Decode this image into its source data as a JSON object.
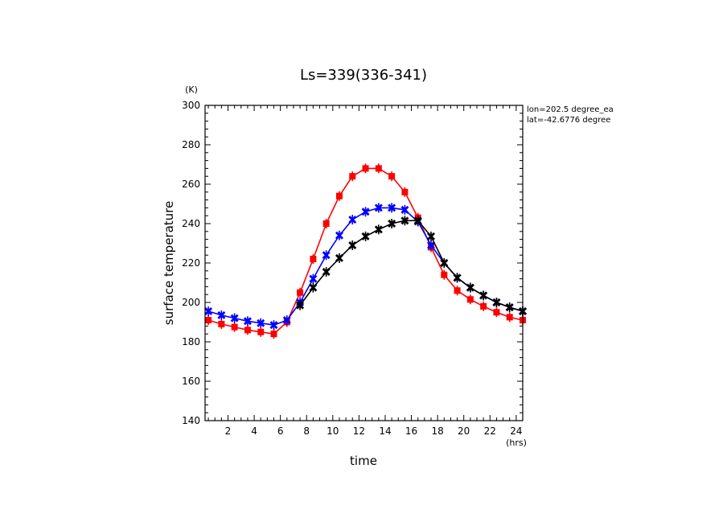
{
  "chart_data": {
    "type": "line",
    "title": "Ls=339(336-341)",
    "xlabel": "time",
    "ylabel": "surface temperature",
    "x_unit": "(hrs)",
    "y_unit": "(K)",
    "annotations": [
      "lon=202.5 degree_ea",
      "lat=-42.6776 degree"
    ],
    "xlim": [
      0.25,
      24.5
    ],
    "ylim": [
      140,
      300
    ],
    "xticks": [
      "2",
      "4",
      "6",
      "8",
      "10",
      "12",
      "14",
      "16",
      "18",
      "20",
      "22",
      "24"
    ],
    "yticks": [
      "140",
      "160",
      "180",
      "200",
      "220",
      "240",
      "260",
      "280",
      "300"
    ],
    "grid": false,
    "x": [
      0.5,
      1.5,
      2.5,
      3.5,
      4.5,
      5.5,
      6.5,
      7.5,
      8.5,
      9.5,
      10.5,
      11.5,
      12.5,
      13.5,
      14.5,
      15.5,
      16.5,
      17.5,
      18.5,
      19.5,
      20.5,
      21.5,
      22.5,
      23.5,
      24.5
    ],
    "series": [
      {
        "color": "#ff0000",
        "marker": "square",
        "values": [
          191,
          189,
          187.5,
          186,
          185,
          184,
          190,
          205,
          222,
          240,
          254,
          264,
          268,
          268,
          264,
          256,
          243,
          228,
          214,
          206,
          201.5,
          198,
          195,
          192.5,
          191
        ]
      },
      {
        "color": "#0000ff",
        "marker": "x",
        "values": [
          195.5,
          193.5,
          192,
          190.5,
          189.5,
          188.5,
          191,
          200,
          212,
          224,
          234,
          242,
          246,
          248,
          248,
          247,
          241,
          229,
          220,
          212.5,
          207.5,
          203.5,
          200,
          197.5,
          195.5
        ]
      },
      {
        "color": "#000000",
        "marker": "x",
        "values": [
          null,
          null,
          null,
          null,
          null,
          null,
          null,
          198.5,
          207.5,
          215.5,
          222.5,
          229,
          233.5,
          237,
          240,
          241.5,
          241.5,
          233.5,
          220,
          212.5,
          207.5,
          203.5,
          200,
          197.5,
          195.5
        ]
      }
    ]
  }
}
